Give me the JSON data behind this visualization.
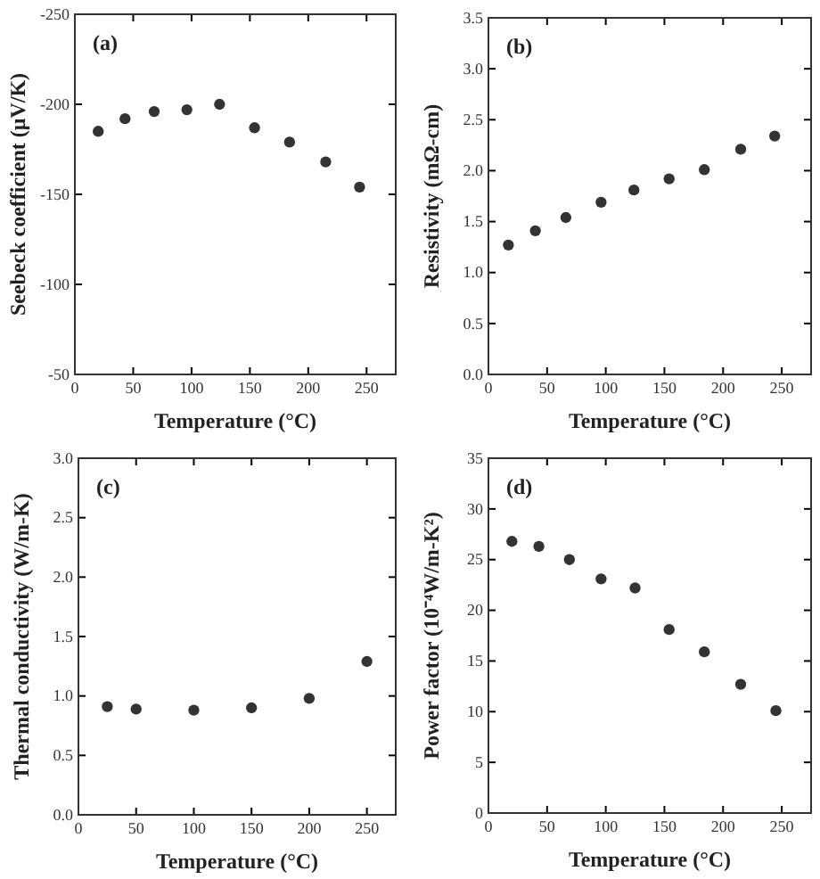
{
  "chart_data": [
    {
      "type": "scatter",
      "xlabel": "Temperature (°C)",
      "ylabel": "Seebeck coefficient (μV/K)",
      "annotations": [
        "(a)"
      ],
      "marker": "circle",
      "xlim": [
        0,
        275
      ],
      "xticks": [
        0,
        50,
        100,
        150,
        200,
        250
      ],
      "ylim": [
        -50,
        -250
      ],
      "yticks": [
        -250,
        -200,
        -150,
        -100,
        -50
      ],
      "x": [
        20,
        43,
        68,
        96,
        124,
        154,
        184,
        215,
        244
      ],
      "series": [
        {
          "color": "#333333",
          "values": [
            -185,
            -192,
            -196,
            -197,
            -200,
            -187,
            -179,
            -168,
            -154
          ]
        }
      ]
    },
    {
      "type": "scatter",
      "xlabel": "Temperature (°C)",
      "ylabel": "Resistivity (mΩ-cm)",
      "annotations": [
        "(b)"
      ],
      "marker": "circle",
      "xlim": [
        0,
        275
      ],
      "xticks": [
        0,
        50,
        100,
        150,
        200,
        250
      ],
      "ylim": [
        0,
        3.5
      ],
      "yticks": [
        {
          "value": 0,
          "label": "0.0"
        },
        {
          "value": 0.5,
          "label": "0.5"
        },
        {
          "value": 1,
          "label": "1.0"
        },
        {
          "value": 1.5,
          "label": "1.5"
        },
        {
          "value": 2,
          "label": "2.0"
        },
        {
          "value": 2.5,
          "label": "2.5"
        },
        {
          "value": 3,
          "label": "3.0"
        },
        {
          "value": 3.5,
          "label": "3.5"
        }
      ],
      "x": [
        17,
        40,
        66,
        96,
        124,
        154,
        184,
        215,
        244
      ],
      "series": [
        {
          "color": "#333333",
          "values": [
            1.27,
            1.41,
            1.54,
            1.69,
            1.81,
            1.92,
            2.01,
            2.21,
            2.34
          ]
        }
      ]
    },
    {
      "type": "scatter",
      "xlabel": "Temperature (°C)",
      "ylabel": "Thermal conductivity (W/m-K)",
      "annotations": [
        "(c)"
      ],
      "marker": "circle",
      "xlim": [
        0,
        275
      ],
      "xticks": [
        0,
        50,
        100,
        150,
        200,
        250
      ],
      "ylim": [
        0,
        3
      ],
      "yticks": [
        {
          "value": 0,
          "label": "0.0"
        },
        {
          "value": 0.5,
          "label": "0.5"
        },
        {
          "value": 1,
          "label": "1.0"
        },
        {
          "value": 1.5,
          "label": "1.5"
        },
        {
          "value": 2,
          "label": "2.0"
        },
        {
          "value": 2.5,
          "label": "2.5"
        },
        {
          "value": 3,
          "label": "3.0"
        }
      ],
      "x": [
        25,
        50,
        100,
        150,
        200,
        250
      ],
      "series": [
        {
          "color": "#333333",
          "values": [
            0.91,
            0.89,
            0.88,
            0.9,
            0.98,
            1.29
          ]
        }
      ]
    },
    {
      "type": "scatter",
      "xlabel": "Temperature (°C)",
      "ylabel": "Power factor (10⁻⁴W/m-K²)",
      "annotations": [
        "(d)"
      ],
      "marker": "circle",
      "xlim": [
        0,
        275
      ],
      "xticks": [
        0,
        50,
        100,
        150,
        200,
        250
      ],
      "ylim": [
        0,
        35
      ],
      "yticks": [
        0,
        5,
        10,
        15,
        20,
        25,
        30,
        35
      ],
      "x": [
        20,
        43,
        69,
        96,
        125,
        154,
        184,
        215,
        245
      ],
      "series": [
        {
          "color": "#333333",
          "values": [
            26.8,
            26.3,
            25.0,
            23.1,
            22.2,
            18.1,
            15.9,
            12.7,
            10.1
          ]
        }
      ]
    }
  ]
}
